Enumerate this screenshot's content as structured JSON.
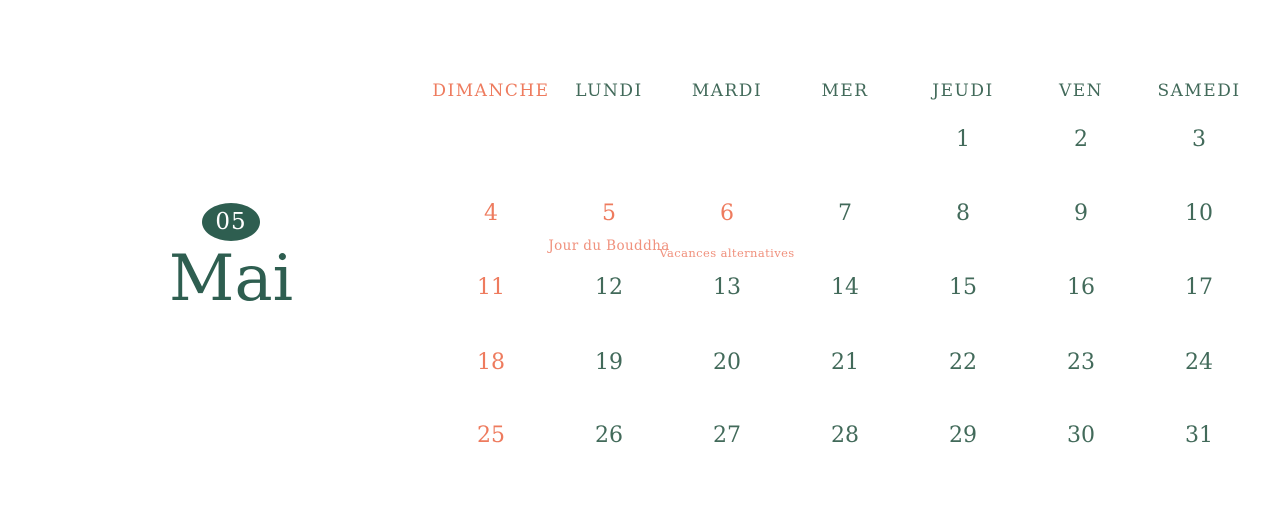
{
  "month": {
    "number": "05",
    "name": "Mai"
  },
  "calendar": {
    "weekday_headers": [
      {
        "label": "DIMANCHE",
        "sunday": true
      },
      {
        "label": "LUNDI",
        "sunday": false
      },
      {
        "label": "MARDI",
        "sunday": false
      },
      {
        "label": "MER",
        "sunday": false
      },
      {
        "label": "JEUDI",
        "sunday": false
      },
      {
        "label": "VEN",
        "sunday": false
      },
      {
        "label": "SAMEDI",
        "sunday": false
      }
    ],
    "weeks": [
      [
        {
          "day": ""
        },
        {
          "day": ""
        },
        {
          "day": ""
        },
        {
          "day": ""
        },
        {
          "day": "1"
        },
        {
          "day": "2"
        },
        {
          "day": "3"
        }
      ],
      [
        {
          "day": "4"
        },
        {
          "day": "5",
          "holiday": true,
          "event": "Jour du Bouddha",
          "event_style": "lg"
        },
        {
          "day": "6",
          "holiday": true,
          "event": "Vacances alternatives",
          "event_style": "sm"
        },
        {
          "day": "7"
        },
        {
          "day": "8"
        },
        {
          "day": "9"
        },
        {
          "day": "10"
        }
      ],
      [
        {
          "day": "11"
        },
        {
          "day": "12"
        },
        {
          "day": "13"
        },
        {
          "day": "14"
        },
        {
          "day": "15"
        },
        {
          "day": "16"
        },
        {
          "day": "17"
        }
      ],
      [
        {
          "day": "18"
        },
        {
          "day": "19"
        },
        {
          "day": "20"
        },
        {
          "day": "21"
        },
        {
          "day": "22"
        },
        {
          "day": "23"
        },
        {
          "day": "24"
        }
      ],
      [
        {
          "day": "25"
        },
        {
          "day": "26"
        },
        {
          "day": "27"
        },
        {
          "day": "28"
        },
        {
          "day": "29"
        },
        {
          "day": "30"
        },
        {
          "day": "31"
        }
      ]
    ]
  },
  "colors": {
    "green_dark": "#2e5e50",
    "green_text": "#426a5a",
    "coral": "#ee7b5e",
    "coral_light": "#f0917d",
    "background": "#ffffff"
  }
}
